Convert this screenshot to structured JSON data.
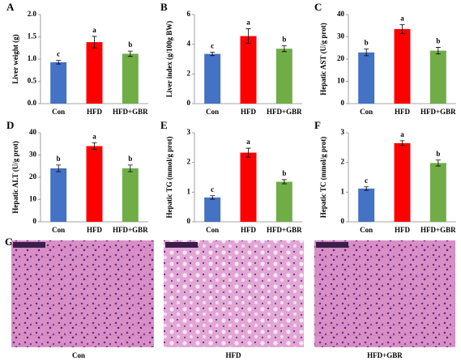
{
  "chart_data": [
    {
      "type": "bar",
      "panel": "A",
      "ylabel": "Liver weight (g)",
      "categories": [
        "Con",
        "HFD",
        "HFD+GBR"
      ],
      "values": [
        0.93,
        1.38,
        1.12
      ],
      "errors": [
        0.04,
        0.13,
        0.06
      ],
      "annotations": [
        "c",
        "a",
        "b"
      ],
      "colors": [
        "#4472c4",
        "#ff0000",
        "#70ad47"
      ],
      "ylim": [
        0,
        2
      ],
      "yticks": [
        {
          "value": 0,
          "label": "0.0"
        },
        0.5,
        {
          "value": 1,
          "label": "1.0"
        },
        1.5,
        {
          "value": 2,
          "label": "2.0"
        }
      ]
    },
    {
      "type": "bar",
      "panel": "B",
      "ylabel": "Liver index (g/100g BW)",
      "categories": [
        "Con",
        "HFD",
        "HFD+GBR"
      ],
      "values": [
        3.35,
        4.55,
        3.7
      ],
      "errors": [
        0.12,
        0.5,
        0.2
      ],
      "annotations": [
        "c",
        "a",
        "b"
      ],
      "colors": [
        "#4472c4",
        "#ff0000",
        "#70ad47"
      ],
      "ylim": [
        0,
        6
      ],
      "yticks": [
        0,
        2,
        4,
        6
      ]
    },
    {
      "type": "bar",
      "panel": "C",
      "ylabel": "Hepatic AST (U/g prot)",
      "categories": [
        "Con",
        "HFD",
        "HFD+GBR"
      ],
      "values": [
        23,
        33.5,
        23.8
      ],
      "errors": [
        1.5,
        2,
        1.5
      ],
      "annotations": [
        "b",
        "a",
        "b"
      ],
      "colors": [
        "#4472c4",
        "#ff0000",
        "#70ad47"
      ],
      "ylim": [
        0,
        40
      ],
      "yticks": [
        0,
        10,
        20,
        30,
        40
      ]
    },
    {
      "type": "bar",
      "panel": "D",
      "ylabel": "Hepatic ALT (U/g prot)",
      "categories": [
        "Con",
        "HFD",
        "HFD+GBR"
      ],
      "values": [
        24,
        34,
        24
      ],
      "errors": [
        1.5,
        1.5,
        1.5
      ],
      "annotations": [
        "b",
        "a",
        "b"
      ],
      "colors": [
        "#4472c4",
        "#ff0000",
        "#70ad47"
      ],
      "ylim": [
        0,
        40
      ],
      "yticks": [
        0,
        10,
        20,
        30,
        40
      ]
    },
    {
      "type": "bar",
      "panel": "E",
      "ylabel": "Hepatic TG (mmol/g prot)",
      "categories": [
        "Con",
        "HFD",
        "HFD+GBR"
      ],
      "values": [
        0.82,
        2.33,
        1.35
      ],
      "errors": [
        0.06,
        0.15,
        0.07
      ],
      "annotations": [
        "c",
        "a",
        "b"
      ],
      "colors": [
        "#4472c4",
        "#ff0000",
        "#70ad47"
      ],
      "ylim": [
        0,
        3
      ],
      "yticks": [
        0,
        1,
        2,
        3
      ]
    },
    {
      "type": "bar",
      "panel": "F",
      "ylabel": "Hepatic TC (mmol/g prot)",
      "categories": [
        "Con",
        "HFD",
        "HFD+GBR"
      ],
      "values": [
        1.12,
        2.65,
        1.98
      ],
      "errors": [
        0.06,
        0.08,
        0.1
      ],
      "annotations": [
        "c",
        "a",
        "b"
      ],
      "colors": [
        "#4472c4",
        "#ff0000",
        "#70ad47"
      ],
      "ylim": [
        0,
        3
      ],
      "yticks": [
        0,
        1,
        2,
        3
      ]
    }
  ],
  "histology": {
    "panel": "G",
    "labels": [
      "Con",
      "HFD",
      "HFD+GBR"
    ]
  }
}
